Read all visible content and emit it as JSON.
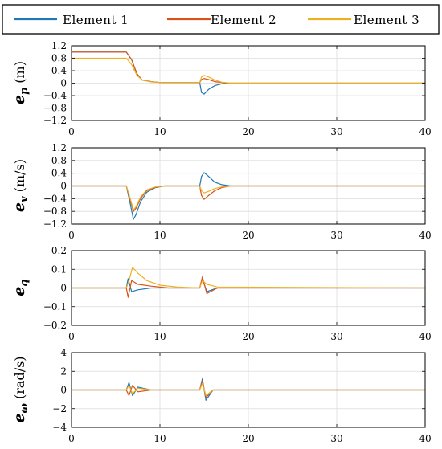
{
  "colors": {
    "element_1": "#1f77b4",
    "element_2": "#d95319",
    "element_3": "#edb120"
  },
  "chart_data": [
    {
      "type": "line",
      "ylabel": {
        "symbol": "e",
        "sub": "p",
        "unit": " (m)"
      },
      "xlim": [
        0,
        40
      ],
      "ylim": [
        -1.2,
        1.2
      ],
      "xticks": [
        0,
        10,
        20,
        30,
        40
      ],
      "yticks": [
        -1.2,
        -0.8,
        -0.4,
        0,
        0.4,
        0.8,
        1.2
      ],
      "ytick_labels": [
        "−1.2",
        "−0.8",
        "−0.4",
        "0",
        "0.4",
        "0.8",
        "1.2"
      ],
      "grid": true,
      "legend": {
        "placement": "top",
        "entries": [
          "Element 1",
          "Element 2",
          "Element 3"
        ]
      },
      "series": [
        {
          "name": "Element 1",
          "x": [
            0,
            6.2,
            6.8,
            7.4,
            8.0,
            9.0,
            10,
            14.5,
            14.7,
            15.0,
            15.5,
            16.2,
            17,
            18,
            40
          ],
          "y": [
            1.0,
            1.0,
            0.75,
            0.3,
            0.1,
            0.05,
            0.02,
            0.02,
            -0.3,
            -0.35,
            -0.2,
            -0.08,
            -0.02,
            0.0,
            0.0
          ]
        },
        {
          "name": "Element 2",
          "x": [
            0,
            6.2,
            6.8,
            7.4,
            8.0,
            9.0,
            10,
            14.5,
            14.7,
            15.0,
            15.5,
            16.2,
            17,
            18,
            40
          ],
          "y": [
            1.0,
            1.0,
            0.75,
            0.3,
            0.1,
            0.05,
            0.02,
            0.02,
            0.12,
            0.15,
            0.12,
            0.05,
            0.02,
            0.0,
            0.0
          ]
        },
        {
          "name": "Element 3",
          "x": [
            0,
            6.2,
            6.8,
            7.4,
            8.0,
            9.0,
            10,
            14.5,
            14.7,
            15.0,
            15.5,
            16.2,
            17,
            18,
            40
          ],
          "y": [
            0.8,
            0.8,
            0.6,
            0.25,
            0.1,
            0.04,
            0.02,
            0.02,
            0.2,
            0.25,
            0.2,
            0.1,
            0.03,
            0.0,
            0.0
          ]
        }
      ]
    },
    {
      "type": "line",
      "ylabel": {
        "symbol": "e",
        "sub": "v",
        "unit": " (m/s)"
      },
      "xlim": [
        0,
        40
      ],
      "ylim": [
        -1.2,
        1.2
      ],
      "xticks": [
        0,
        10,
        20,
        30,
        40
      ],
      "yticks": [
        -1.2,
        -0.8,
        -0.4,
        0,
        0.4,
        0.8,
        1.2
      ],
      "ytick_labels": [
        "−1.2",
        "−0.8",
        "−0.4",
        "0",
        "0.4",
        "0.8",
        "1.2"
      ],
      "grid": true,
      "series": [
        {
          "name": "Element 1",
          "x": [
            0,
            6.2,
            6.6,
            7.0,
            7.3,
            7.8,
            8.5,
            9.5,
            10.5,
            14.5,
            14.7,
            15.0,
            15.5,
            16.2,
            17,
            18,
            40
          ],
          "y": [
            0,
            0,
            -0.5,
            -1.05,
            -0.9,
            -0.5,
            -0.2,
            -0.05,
            0,
            0,
            0.3,
            0.42,
            0.3,
            0.12,
            0.04,
            0,
            0
          ]
        },
        {
          "name": "Element 2",
          "x": [
            0,
            6.2,
            6.6,
            7.0,
            7.3,
            7.8,
            8.5,
            9.5,
            10.5,
            14.5,
            14.7,
            15.0,
            15.5,
            16.2,
            17,
            18,
            40
          ],
          "y": [
            0,
            0,
            -0.4,
            -0.8,
            -0.7,
            -0.4,
            -0.15,
            -0.04,
            0,
            0,
            -0.3,
            -0.42,
            -0.3,
            -0.15,
            -0.05,
            0,
            0
          ]
        },
        {
          "name": "Element 3",
          "x": [
            0,
            6.2,
            6.6,
            7.0,
            7.3,
            7.8,
            8.5,
            9.5,
            10.5,
            14.5,
            14.7,
            15.0,
            15.5,
            16.2,
            17,
            18,
            40
          ],
          "y": [
            0,
            0,
            -0.35,
            -0.75,
            -0.65,
            -0.35,
            -0.12,
            -0.03,
            0,
            0,
            -0.15,
            -0.22,
            -0.17,
            -0.08,
            -0.03,
            0,
            0
          ]
        }
      ]
    },
    {
      "type": "line",
      "ylabel": {
        "symbol": "e",
        "sub": "q",
        "unit": ""
      },
      "xlim": [
        0,
        40
      ],
      "ylim": [
        -0.2,
        0.2
      ],
      "xticks": [
        0,
        10,
        20,
        30,
        40
      ],
      "yticks": [
        -0.2,
        -0.1,
        0,
        0.1,
        0.2
      ],
      "ytick_labels": [
        "−0.2",
        "−0.1",
        "0",
        "0.1",
        "0.2"
      ],
      "grid": true,
      "series": [
        {
          "name": "Element 1",
          "x": [
            0,
            6.2,
            6.4,
            6.8,
            7.5,
            9.0,
            11,
            14.5,
            14.8,
            15.3,
            16.5,
            40
          ],
          "y": [
            0,
            0,
            0.05,
            -0.02,
            -0.01,
            0.0,
            0.0,
            0.0,
            0.05,
            -0.02,
            0.0,
            0.0
          ]
        },
        {
          "name": "Element 2",
          "x": [
            0,
            6.2,
            6.4,
            6.8,
            7.5,
            9.0,
            11,
            14.5,
            14.8,
            15.3,
            16.5,
            40
          ],
          "y": [
            0,
            0,
            -0.05,
            0.04,
            0.02,
            0.01,
            0.0,
            0.0,
            0.06,
            -0.03,
            0.0,
            0.0
          ]
        },
        {
          "name": "Element 3",
          "x": [
            0,
            6.2,
            6.5,
            6.9,
            7.5,
            8.5,
            10,
            12,
            14.5,
            14.8,
            15.3,
            16.5,
            40
          ],
          "y": [
            0,
            0,
            0.04,
            0.11,
            0.08,
            0.04,
            0.015,
            0.005,
            0.0,
            0.04,
            0.02,
            0.005,
            0.0
          ]
        }
      ]
    },
    {
      "type": "line",
      "ylabel": {
        "symbol": "e",
        "sub": "ω",
        "unit": " (rad/s)"
      },
      "xlim": [
        0,
        40
      ],
      "ylim": [
        -4,
        4
      ],
      "xticks": [
        0,
        10,
        20,
        30,
        40
      ],
      "yticks": [
        -4,
        -2,
        0,
        2,
        4
      ],
      "ytick_labels": [
        "−4",
        "−2",
        "0",
        "2",
        "4"
      ],
      "grid": true,
      "series": [
        {
          "name": "Element 1",
          "x": [
            0,
            6.2,
            6.5,
            6.9,
            7.5,
            9,
            14.5,
            14.8,
            15.2,
            16,
            40
          ],
          "y": [
            0,
            0,
            0.8,
            -0.6,
            0.3,
            0.0,
            0.0,
            1.2,
            -1.1,
            0.0,
            0.0
          ]
        },
        {
          "name": "Element 2",
          "x": [
            0,
            6.2,
            6.5,
            6.9,
            7.5,
            9,
            14.5,
            14.8,
            15.2,
            16,
            40
          ],
          "y": [
            0,
            0,
            -0.6,
            0.5,
            -0.2,
            0.0,
            0.0,
            1.0,
            -0.8,
            0.0,
            0.0
          ]
        },
        {
          "name": "Element 3",
          "x": [
            0,
            6.2,
            6.5,
            6.9,
            7.5,
            9,
            14.5,
            14.8,
            15.2,
            16,
            40
          ],
          "y": [
            0,
            0,
            0.5,
            -0.4,
            0.2,
            0.0,
            0.0,
            0.7,
            -0.6,
            0.0,
            0.0
          ]
        }
      ]
    }
  ]
}
